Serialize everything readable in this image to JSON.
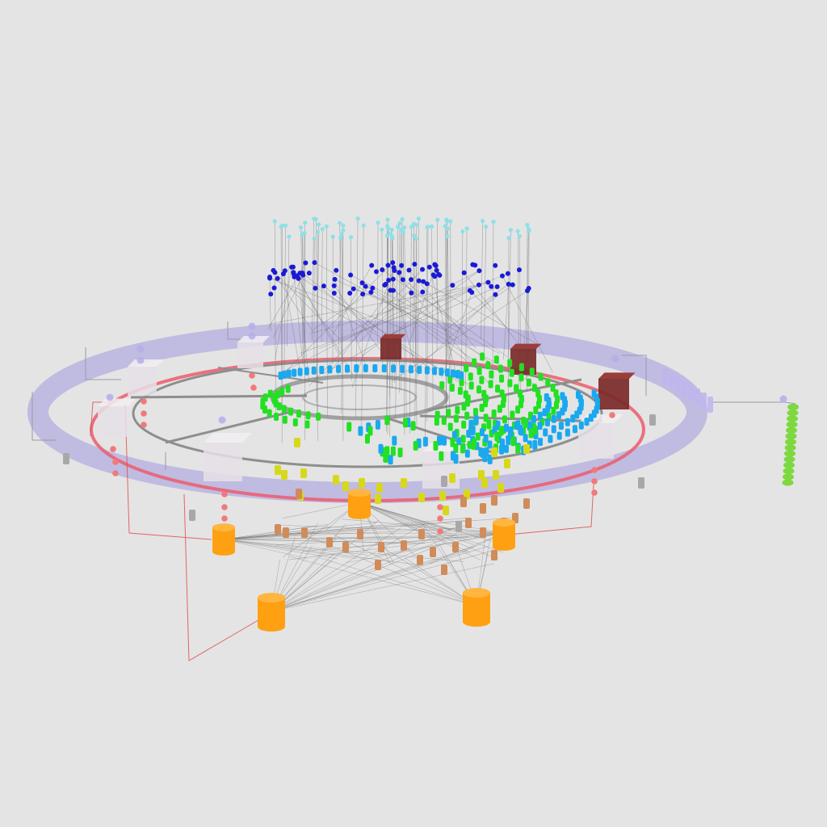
{
  "view": {
    "type": "3d-network-topology-visualization",
    "background": "#e4e4e4"
  },
  "palette": {
    "outer_ring": "#b4aee0",
    "red_ring": "#ec5c6c",
    "gray_ring": "#8e8e8e",
    "top_nodes": "#8fe0e6",
    "blue_nodes": "#1a1ad6",
    "green_nodes": "#22e022",
    "cyan_nodes": "#1aa8f0",
    "yellow_nodes": "#d8d81a",
    "tan_nodes": "#d08c5a",
    "big_cylinders": "#ffa012",
    "dark_cubes": "#7a2a28",
    "white_cubes": "#e6e0e6",
    "pink_nodes": "#f07a7a",
    "violet_nodes": "#b4aeea",
    "green_stack": "#7ed840",
    "violet_stack": "#c0b6ee",
    "gray_small": "#a8a8a8",
    "link_gray": "#6c6c6c",
    "link_red": "#e05050"
  },
  "layers": [
    {
      "name": "top-nodes",
      "color_key": "top_nodes"
    },
    {
      "name": "blue-nodes",
      "color_key": "blue_nodes"
    },
    {
      "name": "ring-nodes-green",
      "color_key": "green_nodes"
    },
    {
      "name": "ring-nodes-cyan",
      "color_key": "cyan_nodes"
    },
    {
      "name": "yellow-nodes",
      "color_key": "yellow_nodes"
    },
    {
      "name": "tan-nodes",
      "color_key": "tan_nodes"
    },
    {
      "name": "storage-cylinders",
      "color_key": "big_cylinders"
    }
  ]
}
